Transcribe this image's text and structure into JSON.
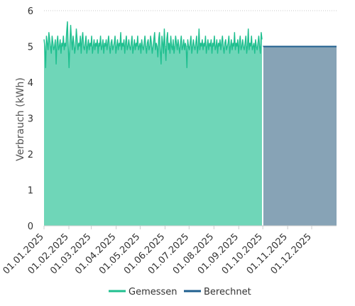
{
  "chart_data": {
    "type": "area",
    "ylabel": "Verbrauch (kWh)",
    "xlabel": "",
    "ylim": [
      0,
      6
    ],
    "yticks": [
      0,
      1,
      2,
      3,
      4,
      5,
      6
    ],
    "xlim": [
      "2025-01-01",
      "2026-01-01"
    ],
    "x_tick_labels": [
      "01.01.2025",
      "01.02.2025",
      "01.03.2025",
      "01.04.2025",
      "01.05.2025",
      "01.06.2025",
      "01.07.2025",
      "01.08.2025",
      "01.09.2025",
      "01.10.2025",
      "01.11.2025",
      "01.12.2025"
    ],
    "x_tick_dates": [
      "2025-01-01",
      "2025-02-01",
      "2025-03-01",
      "2025-04-01",
      "2025-05-01",
      "2025-06-01",
      "2025-07-01",
      "2025-08-01",
      "2025-09-01",
      "2025-10-01",
      "2025-11-01",
      "2025-12-01"
    ],
    "grid": true,
    "legend_position": "bottom",
    "series": [
      {
        "name": "Gemessen",
        "color": "#1fbf8f",
        "fill": "#6fd6b8",
        "x_range": [
          "2025-01-01",
          "2025-09-30"
        ],
        "values_approx": [
          5.2,
          5.0,
          4.4,
          5.3,
          5.1,
          4.9,
          5.4,
          5.2,
          5.0,
          4.8,
          5.3,
          5.1,
          4.9,
          5.0,
          5.2,
          4.5,
          5.1,
          5.3,
          4.9,
          5.0,
          5.2,
          4.8,
          5.1,
          5.0,
          5.3,
          4.9,
          5.1,
          5.0,
          5.4,
          5.7,
          5.0,
          4.4,
          5.1,
          5.6,
          5.2,
          4.9,
          5.3,
          5.1,
          4.8,
          5.0,
          5.5,
          5.2,
          4.9,
          5.1,
          5.0,
          5.3,
          4.8,
          5.2,
          5.4,
          5.0,
          4.9,
          5.1,
          5.3,
          4.8,
          5.0,
          5.2,
          4.9,
          5.1,
          5.0,
          5.3,
          4.8,
          5.0,
          5.2,
          4.9,
          5.1,
          5.0,
          5.2,
          4.8,
          5.1,
          5.0,
          5.3,
          4.9,
          5.0,
          5.2,
          4.8,
          5.1,
          5.0,
          5.2,
          4.9,
          5.1,
          5.3,
          5.0,
          4.8,
          5.1,
          5.2,
          4.9,
          5.0,
          5.1,
          5.3,
          4.8,
          5.0,
          5.2,
          4.9,
          5.1,
          5.0,
          5.4,
          4.9,
          5.1,
          5.0,
          5.2,
          4.8,
          5.1,
          5.3,
          4.9,
          5.0,
          5.2,
          5.0,
          4.9,
          5.1,
          5.3,
          4.8,
          5.0,
          5.2,
          4.9,
          5.1,
          5.0,
          5.3,
          4.9,
          5.0,
          5.1,
          4.8,
          5.2,
          5.0,
          4.9,
          5.1,
          5.3,
          5.0,
          4.8,
          5.1,
          5.2,
          4.9,
          5.0,
          5.3,
          5.1,
          4.8,
          5.0,
          5.2,
          5.4,
          4.9,
          5.1,
          5.0,
          4.7,
          5.2,
          5.4,
          4.9,
          4.5,
          5.3,
          5.1,
          4.8,
          5.5,
          5.0,
          4.6,
          5.2,
          5.4,
          4.9,
          5.1,
          4.8,
          5.3,
          5.0,
          4.9,
          5.2,
          4.8,
          5.0,
          5.3,
          5.1,
          4.9,
          5.2,
          5.0,
          4.8,
          5.1,
          5.3,
          4.9,
          5.0,
          5.2,
          4.9,
          5.1,
          5.0,
          4.4,
          5.2,
          5.0,
          4.9,
          5.1,
          5.3,
          4.8,
          5.0,
          5.2,
          5.0,
          4.9,
          5.1,
          5.3,
          4.8,
          5.0,
          5.5,
          4.9,
          5.1,
          5.0,
          5.2,
          4.9,
          5.1,
          5.0,
          5.3,
          4.8,
          5.0,
          5.2,
          4.9,
          5.1,
          5.0,
          5.2,
          4.8,
          5.1,
          5.0,
          5.3,
          4.9,
          5.0,
          5.2,
          4.8,
          5.1,
          5.0,
          5.2,
          4.9,
          5.1,
          5.3,
          5.0,
          4.8,
          5.1,
          5.2,
          4.9,
          5.0,
          5.1,
          5.3,
          4.8,
          5.0,
          5.2,
          4.9,
          5.1,
          5.0,
          5.4,
          4.9,
          5.1,
          5.0,
          5.2,
          4.8,
          5.1,
          5.3,
          4.9,
          5.0,
          5.2,
          5.0,
          4.9,
          5.1,
          5.3,
          4.8,
          5.0,
          5.5,
          4.9,
          5.1,
          5.0,
          5.3,
          4.9,
          5.0,
          5.1,
          4.8,
          5.2,
          5.0,
          4.9,
          5.1,
          5.3,
          5.0,
          4.8,
          5.4,
          5.2
        ]
      },
      {
        "name": "Berechnet",
        "color": "#1f5f8f",
        "fill": "#87a3b6",
        "x_range": [
          "2025-10-01",
          "2026-01-01"
        ],
        "value": 5.0
      }
    ]
  }
}
